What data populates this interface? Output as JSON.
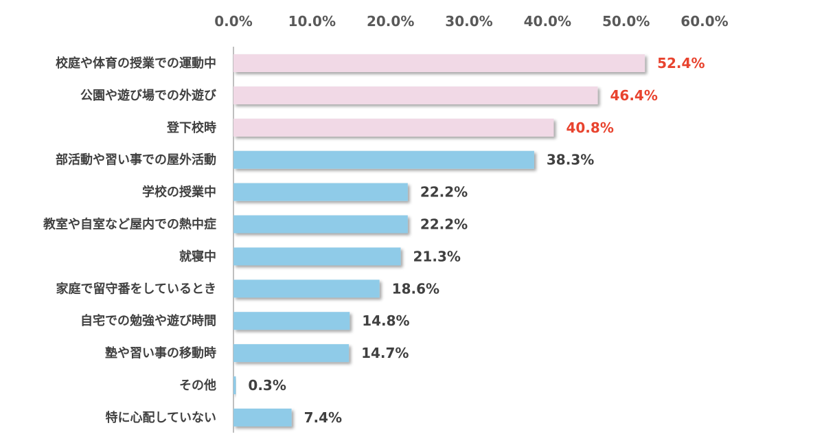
{
  "chart_data": {
    "type": "bar",
    "orientation": "horizontal",
    "title": "",
    "xlabel": "",
    "ylabel": "",
    "xlim": [
      0,
      60
    ],
    "x_ticks": [
      0,
      10,
      20,
      30,
      40,
      50,
      60
    ],
    "x_tick_labels": [
      "0.0%",
      "10.0%",
      "20.0%",
      "30.0%",
      "40.0%",
      "50.0%",
      "60.0%"
    ],
    "x_axis_position": "top",
    "grid": false,
    "categories": [
      "校庭や体育の授業での運動中",
      "公園や遊び場での外遊び",
      "登下校時",
      "部活動や習い事での屋外活動",
      "学校の授業中",
      "教室や自室など屋内での熱中症",
      "就寝中",
      "家庭で留守番をしているとき",
      "自宅での勉強や遊び時間",
      "塾や習い事の移動時",
      "その他",
      "特に心配していない"
    ],
    "values": [
      52.4,
      46.4,
      40.8,
      38.3,
      22.2,
      22.2,
      21.3,
      18.6,
      14.8,
      14.7,
      0.3,
      7.4
    ],
    "value_labels": [
      "52.4%",
      "46.4%",
      "40.8%",
      "38.3%",
      "22.2%",
      "22.2%",
      "21.3%",
      "18.6%",
      "14.8%",
      "14.7%",
      "0.3%",
      "7.4%"
    ],
    "highlight_top_n": 3,
    "colors": {
      "highlight_bar": "#f1d9e6",
      "normal_bar": "#8fcbe8",
      "highlight_label": "#e8432e",
      "normal_label": "#404040",
      "axis": "#bfbfbf"
    }
  }
}
